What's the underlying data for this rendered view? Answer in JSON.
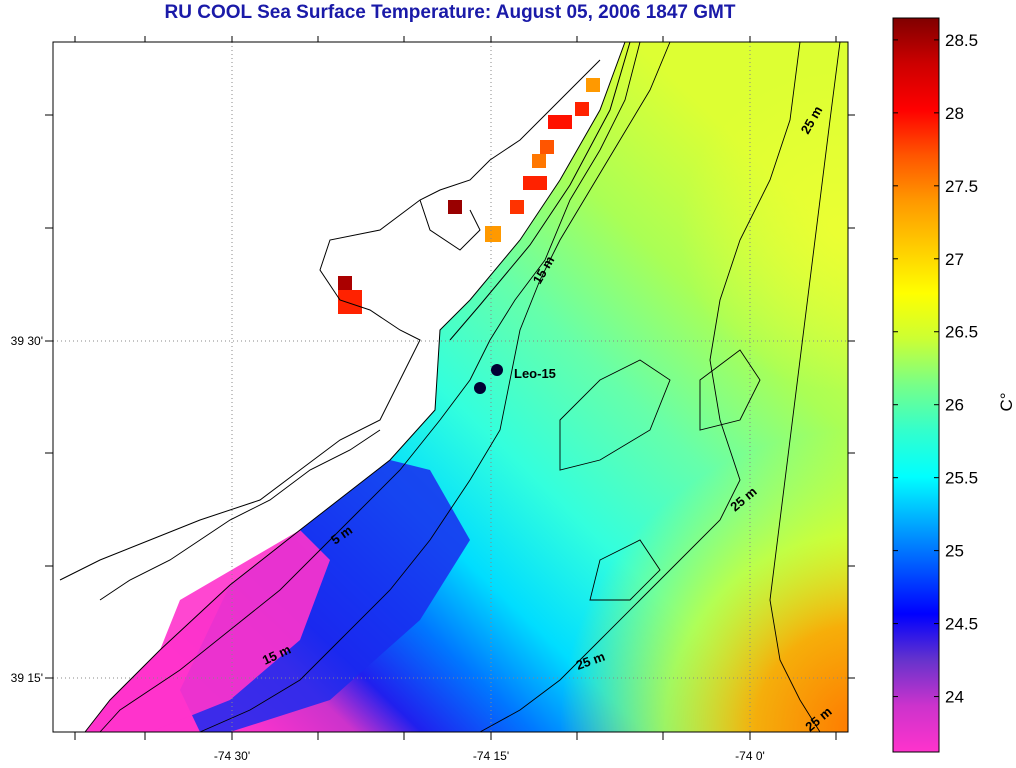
{
  "title": "RU COOL  Sea Surface Temperature:  August 05, 2006 1847 GMT",
  "colorbar": {
    "unit_label": "C°",
    "ticks": [
      "28.5",
      "28",
      "27.5",
      "27",
      "26.5",
      "26",
      "25.5",
      "25",
      "24.5",
      "24"
    ],
    "tick_values": [
      28.5,
      28,
      27.5,
      27,
      26.5,
      26,
      25.5,
      25,
      24.5,
      24
    ],
    "range": [
      23.62,
      28.65
    ],
    "colors": [
      "#ff33cc",
      "#cc33cc",
      "#6633cc",
      "#0000ff",
      "#0055ff",
      "#00aaff",
      "#00ffff",
      "#33ffcc",
      "#77ff88",
      "#ccff33",
      "#ffff00",
      "#ffcc00",
      "#ff9900",
      "#ff5500",
      "#ff0000",
      "#cc0000",
      "#800000"
    ]
  },
  "axes": {
    "x_tick_labels": [
      "-74 30'",
      "-74 15'",
      "-74 0'"
    ],
    "y_tick_labels": [
      "39 30'",
      "39 15'"
    ]
  },
  "contour_labels": [
    "25 m",
    "15 m",
    "25 m",
    "5 m",
    "15 m",
    "25 m",
    "25 m"
  ],
  "stations": [
    {
      "name": "Leo-15"
    }
  ]
}
